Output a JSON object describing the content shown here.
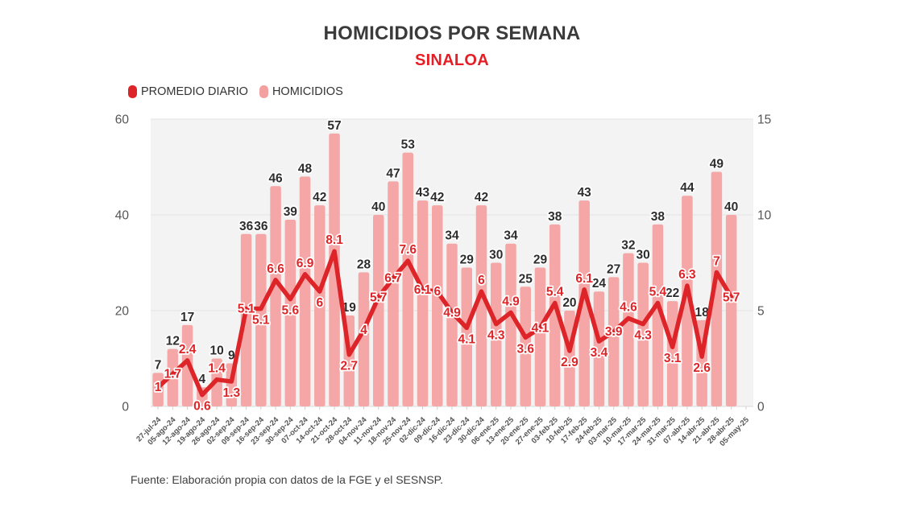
{
  "header": {
    "title": "HOMICIDIOS POR SEMANA",
    "subtitle": "SINALOA"
  },
  "legend": {
    "items": [
      {
        "label": "PROMEDIO DIARIO",
        "color": "#dd2428"
      },
      {
        "label": "HOMICIDIOS",
        "color": "#f5a0a0"
      }
    ]
  },
  "footer": {
    "source": "Fuente: Elaboración propia con datos de la FGE y el SESNSP."
  },
  "colors": {
    "accent_red": "#dd2428",
    "bar_pink": "#f5a6a6",
    "plot_background": "#f3f3f3",
    "gridline": "#e3e3e3",
    "bar_label": "#2d2d2d",
    "axis_text": "#555555"
  },
  "chart_data": {
    "type": "bar",
    "title": "HOMICIDIOS POR SEMANA",
    "subtitle": "SINALOA",
    "grid": true,
    "legend_position": "top-left",
    "categories": [
      "27-jul-24",
      "05-ago-24",
      "12-ago-24",
      "19-ago-24",
      "26-ago-24",
      "02-sep-24",
      "09-sep-24",
      "16-sep-24",
      "23-sep-24",
      "30-sep-24",
      "07-oct-24",
      "14-oct-24",
      "21-oct-24",
      "28-oct-24",
      "04-nov-24",
      "11-nov-24",
      "18-nov-24",
      "25-nov-24",
      "02-dic-24",
      "09-dic-24",
      "16-dic-24",
      "23-dic-24",
      "30-dic-24",
      "06-ene-25",
      "13-ene-25",
      "20-ene-25",
      "27-ene-25",
      "03-feb-25",
      "10-feb-25",
      "17-feb-25",
      "24-feb-25",
      "03-mar-25",
      "10-mar-25",
      "17-mar-25",
      "24-mar-25",
      "31-mar-25",
      "07-abr-25",
      "14-abr-25",
      "21-abr-25",
      "28-abr-25",
      "05-may-25"
    ],
    "series": [
      {
        "name": "HOMICIDIOS",
        "type": "bar",
        "axis": "left",
        "color": "#f5a6a6",
        "values": [
          7,
          12,
          17,
          4,
          10,
          9,
          36,
          36,
          46,
          39,
          48,
          42,
          57,
          19,
          28,
          40,
          47,
          53,
          43,
          42,
          34,
          29,
          42,
          30,
          34,
          25,
          29,
          38,
          20,
          43,
          24,
          27,
          32,
          30,
          38,
          22,
          44,
          18,
          49,
          40,
          null
        ]
      },
      {
        "name": "PROMEDIO DIARIO",
        "type": "line",
        "axis": "right",
        "color": "#dd2428",
        "values": [
          1,
          1.7,
          2.4,
          0.6,
          1.4,
          1.3,
          5.1,
          5.1,
          6.6,
          5.6,
          6.9,
          6,
          8.1,
          2.7,
          4,
          5.7,
          6.7,
          7.6,
          6.1,
          6,
          4.9,
          4.1,
          6,
          4.3,
          4.9,
          3.6,
          4.1,
          5.4,
          2.9,
          6.1,
          3.4,
          3.9,
          4.6,
          4.3,
          5.4,
          3.1,
          6.3,
          2.6,
          7,
          5.7,
          null
        ]
      }
    ],
    "axes": {
      "left": {
        "ticks": [
          0,
          20,
          40,
          60
        ],
        "max": 60
      },
      "right": {
        "ticks": [
          0,
          5,
          10,
          15
        ],
        "max": 15
      }
    }
  }
}
